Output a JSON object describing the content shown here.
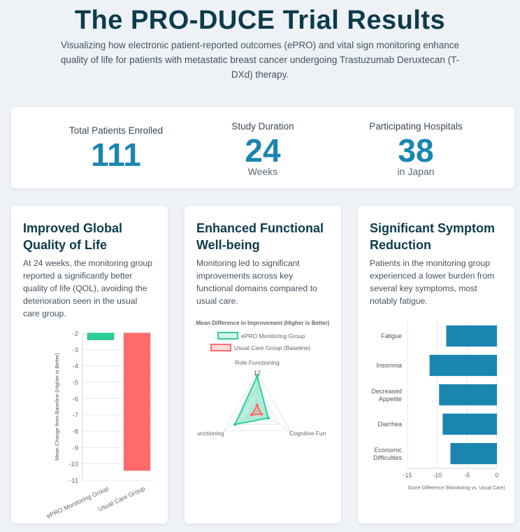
{
  "header": {
    "title": "The PRO-DUCE Trial Results",
    "subtitle": "Visualizing how electronic patient-reported outcomes (ePRO) and vital sign monitoring enhance quality of life for patients with metastatic breast cancer undergoing Trastuzumab Deruxtecan (T-DXd) therapy."
  },
  "stats": [
    {
      "label": "Total Patients Enrolled",
      "value": "111",
      "sub": ""
    },
    {
      "label": "Study Duration",
      "value": "24",
      "sub": "Weeks"
    },
    {
      "label": "Participating Hospitals",
      "value": "38",
      "sub": "in Japan"
    }
  ],
  "cards": [
    {
      "title": "Improved Global Quality of Life",
      "description": "At 24 weeks, the monitoring group reported a significantly better quality of life (QOL), avoiding the deterioration seen in the usual care group."
    },
    {
      "title": "Enhanced Functional Well-being",
      "description": "Monitoring led to significant improvements across key functional domains compared to usual care."
    },
    {
      "title": "Significant Symptom Reduction",
      "description": "Patients in the monitoring group experienced a lower burden from several key symptoms, most notably fatigue."
    }
  ],
  "colors": {
    "accent": "#1a86b0",
    "epro": "#2ccf9a",
    "usual": "#ff6b6b",
    "bar": "#1a86b0"
  },
  "chart_data": [
    {
      "type": "bar",
      "ylabel": "Mean Change from Baseline (Higher is Better)",
      "categories": [
        "ePRO Monitoring Group",
        "Usual Care Group"
      ],
      "values": [
        -2.4,
        -10.4
      ],
      "ylim": [
        -11,
        -2
      ],
      "yticks": [
        "-2",
        "-3",
        "-4",
        "-5",
        "-6",
        "-7",
        "-8",
        "-9",
        "-10",
        "-11"
      ],
      "grid": true
    },
    {
      "type": "radar",
      "title": "Mean Difference in Improvement (Higher is Better)",
      "axes": [
        "Role Functioning",
        "Cognitive Functioning",
        "Emotional Functioning"
      ],
      "axis_labels_visible": [
        "Role Functioning",
        "Cognitive Fun",
        "unctioning"
      ],
      "rmax": 12,
      "tick_label": "12",
      "series": [
        {
          "name": "ePRO Monitoring Group",
          "values": [
            11,
            4,
            8
          ]
        },
        {
          "name": "Usual Care Group (Baseline)",
          "values": [
            2,
            1.5,
            2
          ]
        }
      ],
      "legend": "top"
    },
    {
      "type": "bar",
      "orientation": "horizontal",
      "categories": [
        [
          "Fatigue"
        ],
        [
          "Insomnia"
        ],
        [
          "Decreased",
          "Appetite"
        ],
        [
          "Diarrhea"
        ],
        [
          "Economic",
          "Difficulties"
        ]
      ],
      "values": [
        -8.5,
        -11.3,
        -9.7,
        -9.1,
        -7.8
      ],
      "xlim": [
        -15,
        0
      ],
      "xticks": [
        "-15",
        "-10",
        "-5",
        "0"
      ],
      "xlabel": "Score Difference (Monitoring vs. Usual Care)",
      "grid": true
    }
  ]
}
